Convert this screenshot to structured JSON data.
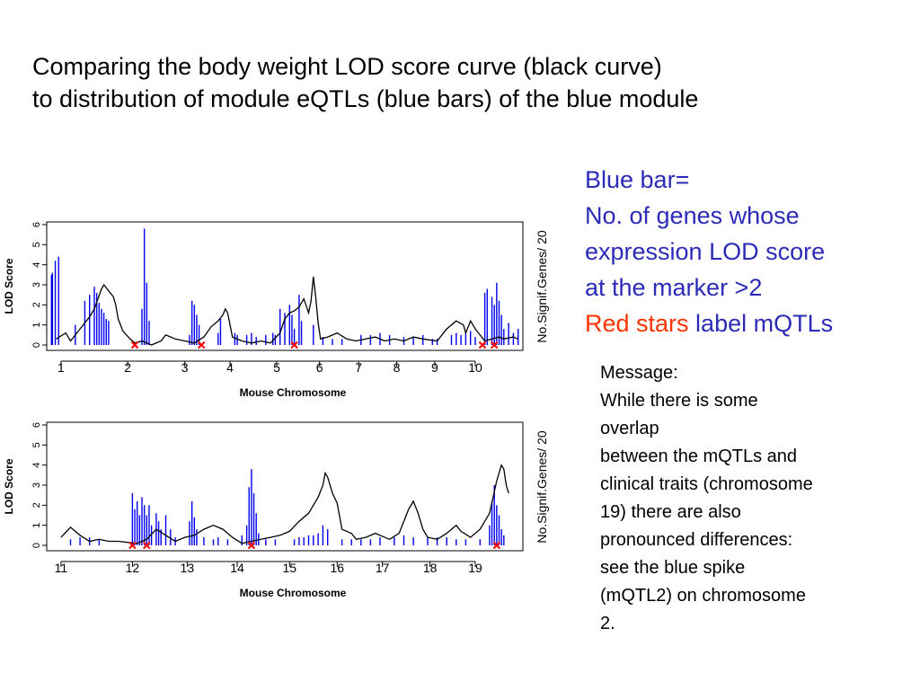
{
  "title": {
    "line1": "Comparing the body weight LOD score curve (black curve)",
    "line2": "to distribution of module eQTLs (blue bars) of the blue module"
  },
  "legend": {
    "line1": "Blue bar=",
    "line2": "No. of genes whose",
    "line3": "expression LOD score",
    "line4": "at the marker >2",
    "red_part": "Red stars",
    "rest_part": " label mQTLs"
  },
  "message": {
    "lines": [
      "Message:",
      "While there is some",
      "overlap",
      "between the mQTLs and",
      "clinical traits (chromosome",
      "19) there are also",
      "pronounced differences:",
      "see the blue spike",
      "(mQTL2) on chromosome",
      "2."
    ]
  },
  "colors": {
    "bars": "#0000ee",
    "curve": "#000000",
    "stars": "#ff0000",
    "legend_text": "#2b2bb8"
  },
  "chart_data": [
    {
      "type": "bar",
      "xlabel": "Mouse Chromosome",
      "ylabel": "LOD Score",
      "right_label": "No.Signif.Genes/ 20",
      "ylim": [
        0,
        6
      ],
      "yticks": [
        "0",
        "1",
        "2",
        "3",
        "4",
        "5",
        "6"
      ],
      "chromosomes": [
        "1",
        "2",
        "3",
        "4",
        "5",
        "6",
        "7",
        "8",
        "9",
        "10"
      ],
      "chrom_positions": [
        0.03,
        0.17,
        0.29,
        0.385,
        0.483,
        0.573,
        0.655,
        0.735,
        0.815,
        0.9,
        1.0
      ],
      "bar_values": [
        [
          0.01,
          3.5
        ],
        [
          0.012,
          3.6
        ],
        [
          0.018,
          4.2
        ],
        [
          0.025,
          4.4
        ],
        [
          0.06,
          1.0
        ],
        [
          0.08,
          2.2
        ],
        [
          0.09,
          2.5
        ],
        [
          0.1,
          2.9
        ],
        [
          0.105,
          2.6
        ],
        [
          0.11,
          2.1
        ],
        [
          0.115,
          1.8
        ],
        [
          0.12,
          1.6
        ],
        [
          0.125,
          1.3
        ],
        [
          0.13,
          1.2
        ],
        [
          0.2,
          1.8
        ],
        [
          0.205,
          5.8
        ],
        [
          0.21,
          3.1
        ],
        [
          0.215,
          1.2
        ],
        [
          0.3,
          0.5
        ],
        [
          0.305,
          2.2
        ],
        [
          0.31,
          2.0
        ],
        [
          0.315,
          1.5
        ],
        [
          0.32,
          1.0
        ],
        [
          0.36,
          0.6
        ],
        [
          0.365,
          1.3
        ],
        [
          0.395,
          0.6
        ],
        [
          0.4,
          0.5
        ],
        [
          0.42,
          0.5
        ],
        [
          0.43,
          0.6
        ],
        [
          0.44,
          0.4
        ],
        [
          0.46,
          0.5
        ],
        [
          0.475,
          0.6
        ],
        [
          0.48,
          0.5
        ],
        [
          0.49,
          1.8
        ],
        [
          0.5,
          1.6
        ],
        [
          0.51,
          2.0
        ],
        [
          0.515,
          1.5
        ],
        [
          0.52,
          0.8
        ],
        [
          0.53,
          2.5
        ],
        [
          0.535,
          1.2
        ],
        [
          0.56,
          1.0
        ],
        [
          0.58,
          0.4
        ],
        [
          0.6,
          0.3
        ],
        [
          0.62,
          0.3
        ],
        [
          0.66,
          0.5
        ],
        [
          0.68,
          0.5
        ],
        [
          0.7,
          0.6
        ],
        [
          0.72,
          0.5
        ],
        [
          0.75,
          0.4
        ],
        [
          0.77,
          0.4
        ],
        [
          0.79,
          0.5
        ],
        [
          0.81,
          0.3
        ],
        [
          0.82,
          0.3
        ],
        [
          0.85,
          0.5
        ],
        [
          0.86,
          0.6
        ],
        [
          0.87,
          0.5
        ],
        [
          0.88,
          0.6
        ],
        [
          0.89,
          0.7
        ],
        [
          0.9,
          0.4
        ],
        [
          0.92,
          2.6
        ],
        [
          0.925,
          2.8
        ],
        [
          0.935,
          2.4
        ],
        [
          0.94,
          2.0
        ],
        [
          0.945,
          3.1
        ],
        [
          0.95,
          2.2
        ],
        [
          0.955,
          1.5
        ],
        [
          0.96,
          0.8
        ],
        [
          0.97,
          1.1
        ],
        [
          0.98,
          0.6
        ],
        [
          0.99,
          0.8
        ]
      ],
      "lod_curve": [
        [
          0.02,
          0.3
        ],
        [
          0.04,
          0.6
        ],
        [
          0.05,
          0.2
        ],
        [
          0.07,
          0.8
        ],
        [
          0.09,
          1.4
        ],
        [
          0.1,
          1.8
        ],
        [
          0.115,
          2.8
        ],
        [
          0.12,
          3.0
        ],
        [
          0.13,
          2.7
        ],
        [
          0.14,
          2.4
        ],
        [
          0.145,
          2.0
        ],
        [
          0.15,
          1.3
        ],
        [
          0.16,
          0.7
        ],
        [
          0.175,
          0.3
        ],
        [
          0.185,
          0.1
        ],
        [
          0.2,
          0.2
        ],
        [
          0.22,
          0.0
        ],
        [
          0.24,
          0.2
        ],
        [
          0.25,
          0.5
        ],
        [
          0.27,
          0.3
        ],
        [
          0.29,
          0.2
        ],
        [
          0.31,
          0.1
        ],
        [
          0.33,
          0.4
        ],
        [
          0.345,
          0.9
        ],
        [
          0.36,
          1.2
        ],
        [
          0.37,
          1.5
        ],
        [
          0.375,
          1.8
        ],
        [
          0.38,
          1.6
        ],
        [
          0.39,
          0.4
        ],
        [
          0.41,
          0.2
        ],
        [
          0.43,
          0.1
        ],
        [
          0.45,
          0.2
        ],
        [
          0.47,
          0.1
        ],
        [
          0.49,
          0.6
        ],
        [
          0.5,
          1.3
        ],
        [
          0.51,
          1.6
        ],
        [
          0.52,
          1.7
        ],
        [
          0.53,
          1.9
        ],
        [
          0.54,
          2.3
        ],
        [
          0.55,
          1.6
        ],
        [
          0.555,
          2.2
        ],
        [
          0.56,
          3.4
        ],
        [
          0.565,
          2.4
        ],
        [
          0.57,
          1.1
        ],
        [
          0.575,
          0.3
        ],
        [
          0.59,
          0.4
        ],
        [
          0.61,
          0.6
        ],
        [
          0.63,
          0.3
        ],
        [
          0.65,
          0.2
        ],
        [
          0.67,
          0.3
        ],
        [
          0.69,
          0.4
        ],
        [
          0.71,
          0.2
        ],
        [
          0.73,
          0.3
        ],
        [
          0.75,
          0.2
        ],
        [
          0.77,
          0.4
        ],
        [
          0.79,
          0.3
        ],
        [
          0.82,
          0.2
        ],
        [
          0.84,
          0.8
        ],
        [
          0.86,
          1.2
        ],
        [
          0.875,
          1.0
        ],
        [
          0.88,
          0.6
        ],
        [
          0.89,
          1.2
        ],
        [
          0.9,
          0.8
        ],
        [
          0.92,
          0.2
        ],
        [
          0.95,
          0.4
        ],
        [
          0.96,
          0.3
        ],
        [
          0.98,
          0.4
        ],
        [
          0.99,
          0.3
        ]
      ],
      "mqtl_stars": [
        0.185,
        0.325,
        0.52,
        0.915,
        0.94
      ]
    },
    {
      "type": "bar",
      "xlabel": "Mouse Chromosome",
      "ylabel": "LOD Score",
      "right_label": "No.Signif.Genes/ 20",
      "ylim": [
        0,
        6
      ],
      "yticks": [
        "0",
        "1",
        "2",
        "3",
        "4",
        "5",
        "6"
      ],
      "chromosomes": [
        "11",
        "12",
        "13",
        "14",
        "15",
        "16",
        "17",
        "18",
        "19"
      ],
      "chrom_positions": [
        0.03,
        0.18,
        0.295,
        0.4,
        0.51,
        0.61,
        0.705,
        0.805,
        0.9,
        1.0
      ],
      "bar_values": [
        [
          0.05,
          0.3
        ],
        [
          0.07,
          0.4
        ],
        [
          0.09,
          0.4
        ],
        [
          0.11,
          0.3
        ],
        [
          0.18,
          2.6
        ],
        [
          0.185,
          1.8
        ],
        [
          0.19,
          2.2
        ],
        [
          0.195,
          1.5
        ],
        [
          0.2,
          2.4
        ],
        [
          0.205,
          2.0
        ],
        [
          0.21,
          1.5
        ],
        [
          0.215,
          2.0
        ],
        [
          0.22,
          1.0
        ],
        [
          0.23,
          1.6
        ],
        [
          0.235,
          1.2
        ],
        [
          0.24,
          0.8
        ],
        [
          0.25,
          1.5
        ],
        [
          0.26,
          0.8
        ],
        [
          0.27,
          0.4
        ],
        [
          0.3,
          1.2
        ],
        [
          0.305,
          2.2
        ],
        [
          0.31,
          1.4
        ],
        [
          0.315,
          0.8
        ],
        [
          0.33,
          0.4
        ],
        [
          0.35,
          0.3
        ],
        [
          0.36,
          0.4
        ],
        [
          0.38,
          0.3
        ],
        [
          0.41,
          0.5
        ],
        [
          0.42,
          1.0
        ],
        [
          0.425,
          2.9
        ],
        [
          0.43,
          3.8
        ],
        [
          0.435,
          2.6
        ],
        [
          0.44,
          1.6
        ],
        [
          0.445,
          0.6
        ],
        [
          0.46,
          0.3
        ],
        [
          0.48,
          0.3
        ],
        [
          0.52,
          0.3
        ],
        [
          0.53,
          0.4
        ],
        [
          0.54,
          0.4
        ],
        [
          0.55,
          0.5
        ],
        [
          0.56,
          0.5
        ],
        [
          0.57,
          0.6
        ],
        [
          0.58,
          1.0
        ],
        [
          0.59,
          0.8
        ],
        [
          0.62,
          0.3
        ],
        [
          0.64,
          0.3
        ],
        [
          0.66,
          0.3
        ],
        [
          0.68,
          0.3
        ],
        [
          0.7,
          0.4
        ],
        [
          0.73,
          0.4
        ],
        [
          0.75,
          0.5
        ],
        [
          0.77,
          0.4
        ],
        [
          0.8,
          0.4
        ],
        [
          0.82,
          0.4
        ],
        [
          0.84,
          0.4
        ],
        [
          0.86,
          0.3
        ],
        [
          0.88,
          0.3
        ],
        [
          0.91,
          0.3
        ],
        [
          0.93,
          1.0
        ],
        [
          0.935,
          2.2
        ],
        [
          0.94,
          3.0
        ],
        [
          0.945,
          2.0
        ],
        [
          0.95,
          1.5
        ],
        [
          0.955,
          0.8
        ],
        [
          0.96,
          0.5
        ]
      ],
      "lod_curve": [
        [
          0.03,
          0.4
        ],
        [
          0.05,
          0.9
        ],
        [
          0.07,
          0.5
        ],
        [
          0.09,
          0.2
        ],
        [
          0.11,
          0.3
        ],
        [
          0.13,
          0.2
        ],
        [
          0.15,
          0.2
        ],
        [
          0.19,
          0.1
        ],
        [
          0.21,
          0.3
        ],
        [
          0.23,
          0.8
        ],
        [
          0.25,
          0.5
        ],
        [
          0.27,
          0.2
        ],
        [
          0.29,
          0.4
        ],
        [
          0.31,
          0.5
        ],
        [
          0.33,
          0.8
        ],
        [
          0.35,
          1.0
        ],
        [
          0.37,
          0.8
        ],
        [
          0.39,
          0.4
        ],
        [
          0.41,
          0.1
        ],
        [
          0.43,
          0.2
        ],
        [
          0.45,
          0.3
        ],
        [
          0.47,
          0.4
        ],
        [
          0.49,
          0.5
        ],
        [
          0.51,
          0.7
        ],
        [
          0.53,
          1.2
        ],
        [
          0.55,
          1.6
        ],
        [
          0.56,
          2.0
        ],
        [
          0.57,
          2.4
        ],
        [
          0.58,
          3.0
        ],
        [
          0.585,
          3.6
        ],
        [
          0.59,
          3.4
        ],
        [
          0.6,
          2.6
        ],
        [
          0.61,
          2.1
        ],
        [
          0.62,
          0.8
        ],
        [
          0.64,
          0.6
        ],
        [
          0.65,
          0.3
        ],
        [
          0.67,
          0.4
        ],
        [
          0.69,
          0.6
        ],
        [
          0.7,
          0.5
        ],
        [
          0.72,
          0.3
        ],
        [
          0.74,
          0.6
        ],
        [
          0.75,
          1.2
        ],
        [
          0.76,
          1.8
        ],
        [
          0.77,
          2.2
        ],
        [
          0.78,
          1.6
        ],
        [
          0.79,
          0.8
        ],
        [
          0.8,
          0.4
        ],
        [
          0.82,
          0.3
        ],
        [
          0.84,
          0.6
        ],
        [
          0.86,
          1.0
        ],
        [
          0.87,
          0.7
        ],
        [
          0.89,
          0.4
        ],
        [
          0.91,
          0.8
        ],
        [
          0.93,
          1.6
        ],
        [
          0.945,
          3.2
        ],
        [
          0.955,
          4.0
        ],
        [
          0.96,
          3.8
        ],
        [
          0.965,
          3.0
        ],
        [
          0.97,
          2.6
        ]
      ],
      "mqtl_stars": [
        0.18,
        0.21,
        0.43,
        0.945
      ]
    }
  ]
}
